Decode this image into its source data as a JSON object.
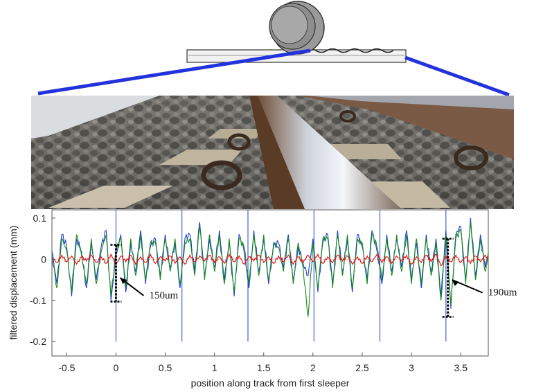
{
  "chart_data": {
    "type": "line",
    "title": "",
    "xlabel": "position along track from first sleeper",
    "ylabel": "filtered displacement (mm)",
    "xlim": [
      -0.65,
      3.78
    ],
    "ylim": [
      -0.235,
      0.12
    ],
    "x_ticks": [
      -0.5,
      0,
      0.5,
      1,
      1.5,
      2,
      2.5,
      3,
      3.5
    ],
    "x_tick_labels": [
      "-0.5",
      "0",
      "0.5",
      "1",
      "1.5",
      "2",
      "2.5",
      "3",
      "3.5"
    ],
    "y_ticks": [
      0.1,
      0,
      -0.1,
      -0.2
    ],
    "y_tick_labels": [
      "0.1",
      "0",
      "-0.1",
      "-0.2"
    ],
    "grid": false,
    "sleeper_positions": [
      0,
      0.67,
      1.34,
      2.01,
      2.68,
      3.35
    ],
    "series": [
      {
        "color": "#1f3fd6",
        "x": [
          -0.65,
          -0.6,
          -0.55,
          -0.5,
          -0.45,
          -0.4,
          -0.35,
          -0.3,
          -0.25,
          -0.2,
          -0.15,
          -0.1,
          -0.05,
          0,
          0.05,
          0.1,
          0.15,
          0.2,
          0.25,
          0.3,
          0.35,
          0.4,
          0.45,
          0.5,
          0.55,
          0.6,
          0.65,
          0.7,
          0.75,
          0.8,
          0.85,
          0.9,
          0.95,
          1,
          1.05,
          1.1,
          1.15,
          1.2,
          1.25,
          1.3,
          1.35,
          1.4,
          1.45,
          1.5,
          1.55,
          1.6,
          1.65,
          1.7,
          1.75,
          1.8,
          1.85,
          1.9,
          1.95,
          2,
          2.05,
          2.1,
          2.15,
          2.2,
          2.25,
          2.3,
          2.35,
          2.4,
          2.45,
          2.5,
          2.55,
          2.6,
          2.65,
          2.7,
          2.75,
          2.8,
          2.85,
          2.9,
          2.95,
          3,
          3.05,
          3.1,
          3.15,
          3.2,
          3.25,
          3.3,
          3.35,
          3.4,
          3.45,
          3.5,
          3.55,
          3.6,
          3.65,
          3.7,
          3.75,
          3.78
        ],
        "y": [
          0.02,
          -0.06,
          0.06,
          0.03,
          -0.09,
          0.05,
          0.02,
          -0.07,
          0.04,
          -0.05,
          0.03,
          0.07,
          -0.1,
          0.01,
          0.06,
          -0.08,
          0.04,
          -0.03,
          0.07,
          -0.06,
          0.03,
          0.05,
          -0.04,
          0.06,
          -0.02,
          0.04,
          -0.07,
          0.05,
          0.06,
          -0.03,
          0.09,
          -0.04,
          0.05,
          -0.02,
          0.07,
          -0.05,
          0.04,
          -0.09,
          0.06,
          0.02,
          -0.07,
          0.07,
          -0.03,
          0.05,
          -0.06,
          0.03,
          0.04,
          -0.02,
          0.06,
          -0.05,
          0.03,
          -0.01,
          -0.04,
          0.05,
          -0.08,
          0.04,
          0.06,
          -0.06,
          0.07,
          -0.03,
          0.05,
          -0.08,
          0.06,
          0.03,
          -0.05,
          0.07,
          0.02,
          -0.06,
          0.06,
          -0.03,
          0.05,
          -0.02,
          0.07,
          -0.05,
          0.04,
          -0.07,
          0.06,
          -0.03,
          0.05,
          -0.09,
          0.07,
          -0.12,
          0.06,
          0.08,
          -0.05,
          0.1,
          -0.04,
          0.06,
          -0.02,
          0.01
        ]
      },
      {
        "color": "#178a17",
        "x": [
          -0.65,
          -0.6,
          -0.55,
          -0.5,
          -0.45,
          -0.4,
          -0.35,
          -0.3,
          -0.25,
          -0.2,
          -0.15,
          -0.1,
          -0.05,
          0,
          0.05,
          0.1,
          0.15,
          0.2,
          0.25,
          0.3,
          0.35,
          0.4,
          0.45,
          0.5,
          0.55,
          0.6,
          0.65,
          0.7,
          0.75,
          0.8,
          0.85,
          0.9,
          0.95,
          1,
          1.05,
          1.1,
          1.15,
          1.2,
          1.25,
          1.3,
          1.35,
          1.4,
          1.45,
          1.5,
          1.55,
          1.6,
          1.65,
          1.7,
          1.75,
          1.8,
          1.85,
          1.9,
          1.95,
          2,
          2.05,
          2.1,
          2.15,
          2.2,
          2.25,
          2.3,
          2.35,
          2.4,
          2.45,
          2.5,
          2.55,
          2.6,
          2.65,
          2.7,
          2.75,
          2.8,
          2.85,
          2.9,
          2.95,
          3,
          3.05,
          3.1,
          3.15,
          3.2,
          3.25,
          3.3,
          3.35,
          3.4,
          3.45,
          3.5,
          3.55,
          3.6,
          3.65,
          3.7,
          3.75,
          3.78
        ],
        "y": [
          0.01,
          -0.07,
          0.05,
          0.02,
          -0.08,
          0.06,
          0.01,
          -0.06,
          0.05,
          -0.06,
          0.02,
          0.06,
          -0.09,
          0.02,
          0.05,
          -0.07,
          0.05,
          -0.04,
          0.06,
          -0.05,
          0.04,
          0.04,
          -0.05,
          0.05,
          -0.03,
          0.05,
          -0.06,
          0.04,
          0.05,
          -0.04,
          0.08,
          -0.05,
          0.06,
          -0.03,
          0.06,
          -0.06,
          0.05,
          -0.08,
          0.05,
          0.03,
          -0.06,
          0.06,
          -0.04,
          0.06,
          -0.05,
          0.04,
          0.03,
          -0.03,
          0.05,
          -0.06,
          0.04,
          -0.02,
          -0.14,
          0.04,
          -0.07,
          0.05,
          0.05,
          -0.07,
          0.06,
          -0.04,
          0.06,
          -0.07,
          0.05,
          0.04,
          -0.06,
          0.06,
          0.03,
          -0.05,
          0.05,
          -0.04,
          0.06,
          -0.03,
          0.06,
          -0.06,
          0.05,
          -0.06,
          0.05,
          -0.04,
          0.04,
          -0.1,
          0.06,
          -0.11,
          0.05,
          0.07,
          -0.06,
          0.09,
          -0.05,
          0.05,
          -0.03,
          0.02
        ]
      },
      {
        "color": "#ee1111",
        "x": [
          -0.65,
          -0.6,
          -0.55,
          -0.5,
          -0.45,
          -0.4,
          -0.35,
          -0.3,
          -0.25,
          -0.2,
          -0.15,
          -0.1,
          -0.05,
          0,
          0.05,
          0.1,
          0.15,
          0.2,
          0.25,
          0.3,
          0.35,
          0.4,
          0.45,
          0.5,
          0.55,
          0.6,
          0.65,
          0.7,
          0.75,
          0.8,
          0.85,
          0.9,
          0.95,
          1,
          1.05,
          1.1,
          1.15,
          1.2,
          1.25,
          1.3,
          1.35,
          1.4,
          1.45,
          1.5,
          1.55,
          1.6,
          1.65,
          1.7,
          1.75,
          1.8,
          1.85,
          1.9,
          1.95,
          2,
          2.05,
          2.1,
          2.15,
          2.2,
          2.25,
          2.3,
          2.35,
          2.4,
          2.45,
          2.5,
          2.55,
          2.6,
          2.65,
          2.7,
          2.75,
          2.8,
          2.85,
          2.9,
          2.95,
          3,
          3.05,
          3.1,
          3.15,
          3.2,
          3.25,
          3.3,
          3.35,
          3.4,
          3.45,
          3.5,
          3.55,
          3.6,
          3.65,
          3.7,
          3.75,
          3.78
        ],
        "y": [
          0.004,
          -0.008,
          0.01,
          -0.006,
          0.008,
          -0.012,
          0.006,
          -0.004,
          0.01,
          -0.008,
          0.006,
          -0.01,
          0.012,
          -0.014,
          0.008,
          -0.006,
          0.01,
          -0.012,
          0.006,
          -0.008,
          0.012,
          -0.01,
          0.006,
          -0.004,
          0.008,
          -0.01,
          0.006,
          -0.012,
          0.01,
          -0.006,
          0.008,
          -0.004,
          0.01,
          -0.008,
          0.006,
          -0.01,
          0.012,
          -0.006,
          0.008,
          -0.012,
          0.006,
          -0.004,
          0.01,
          -0.008,
          0.006,
          -0.01,
          0.008,
          -0.006,
          0.01,
          -0.012,
          0.006,
          -0.008,
          0.01,
          -0.006,
          0.012,
          -0.01,
          0.006,
          -0.008,
          0.01,
          -0.004,
          0.008,
          -0.012,
          0.006,
          -0.01,
          0.008,
          -0.006,
          0.012,
          -0.008,
          0.006,
          -0.01,
          0.008,
          -0.004,
          0.01,
          -0.012,
          0.006,
          -0.008,
          0.01,
          -0.006,
          0.012,
          -0.016,
          0.008,
          -0.006,
          0.01,
          -0.008,
          0.006,
          -0.01,
          0.008,
          -0.006,
          0.01,
          -0.004
        ]
      }
    ],
    "annotations": [
      {
        "text": "150um",
        "x": 0.0,
        "y_top": 0.035,
        "y_bottom": -0.103
      },
      {
        "text": "190um",
        "x": 3.37,
        "y_top": 0.05,
        "y_bottom": -0.14
      }
    ]
  }
}
